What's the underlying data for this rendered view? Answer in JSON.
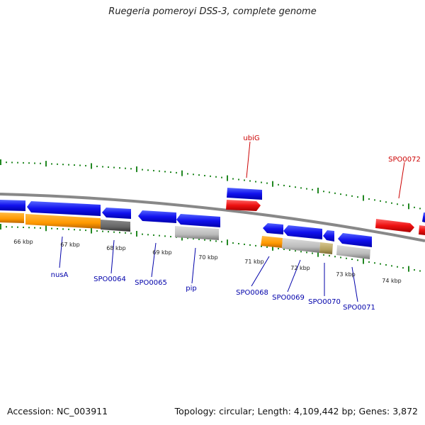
{
  "title": "Ruegeria pomeroyi DSS-3, complete genome",
  "footer": {
    "accession": "Accession: NC_003911",
    "summary": "Topology: circular; Length: 4,109,442 bp; Genes: 3,872"
  },
  "scale_labels": [
    "66 kbp",
    "67 kbp",
    "68 kbp",
    "69 kbp",
    "70 kbp",
    "71 kbp",
    "72 kbp",
    "73 kbp",
    "74 kbp"
  ],
  "gene_labels": {
    "top": [
      "ubiG",
      "SPO0072"
    ],
    "bottom": [
      "nusA",
      "SPO0064",
      "SPO0065",
      "pip",
      "SPO0068",
      "SPO0069",
      "SPO0070",
      "SPO0071"
    ]
  },
  "colors": {
    "forward_gene": "#ee1111",
    "reverse_gene": "#1111ee",
    "rna_feature": "#ff9900",
    "pseudo_gray": "#bbbbbb",
    "dark_gray": "#666666",
    "olive": "#b3a060",
    "backbone": "#888888",
    "tick": "#228822",
    "top_label": "#cc0000",
    "bottom_label": "#0000aa"
  }
}
